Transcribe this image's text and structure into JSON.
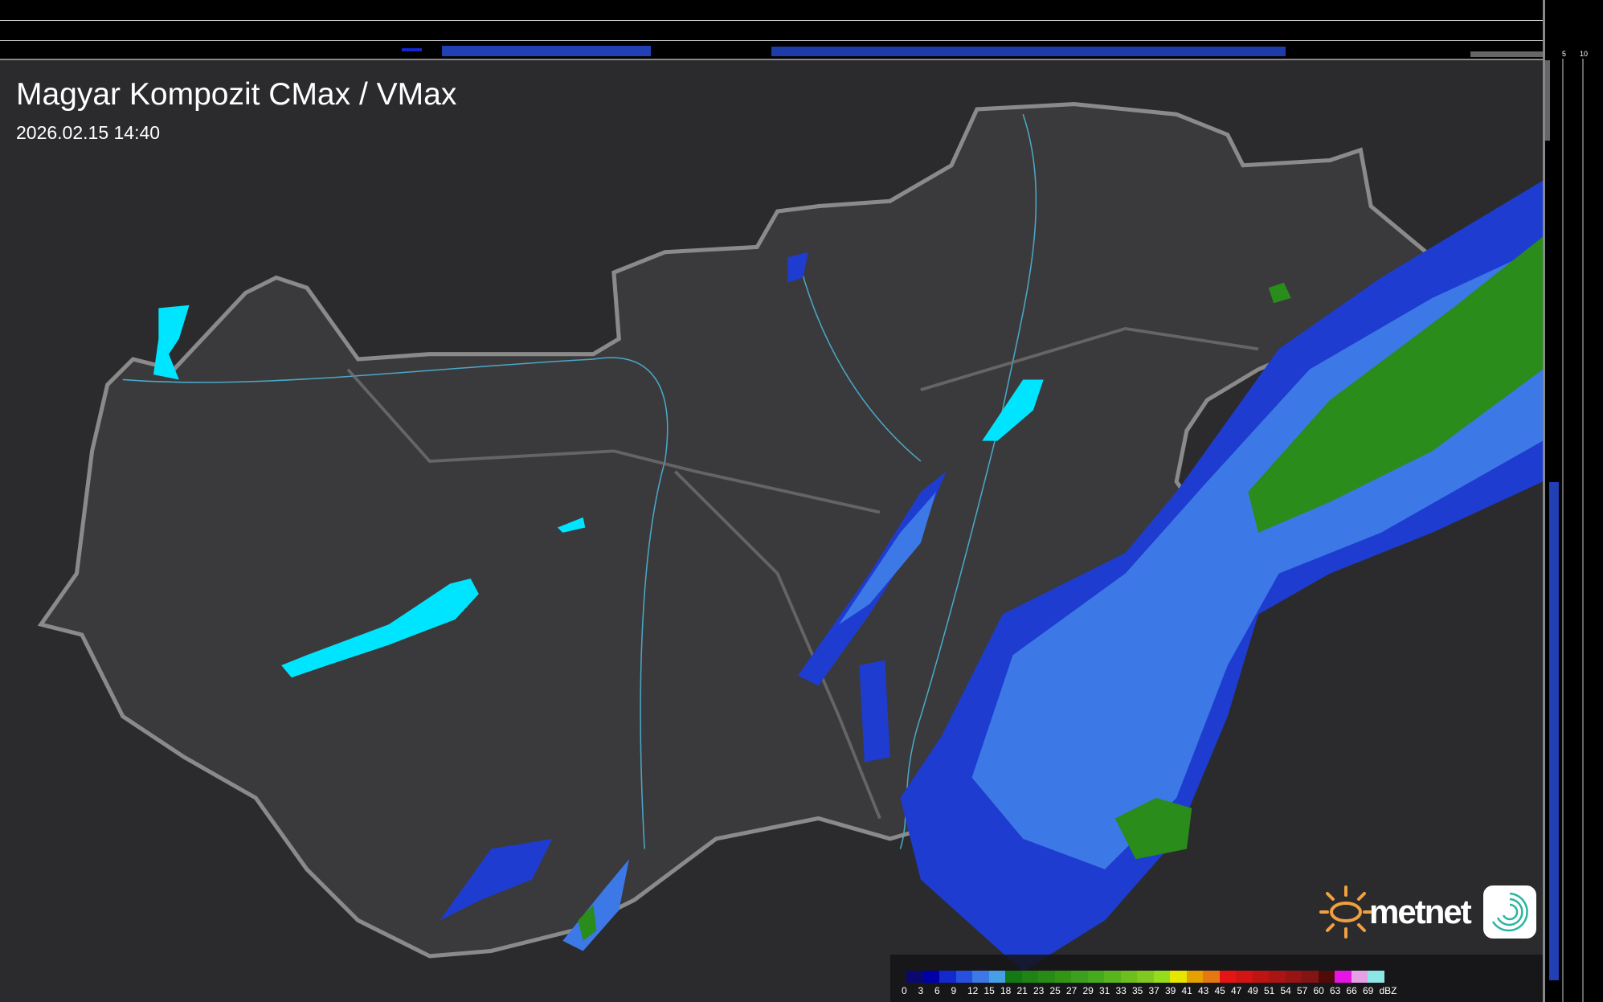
{
  "header": {
    "title": "Magyar Kompozit CMax / VMax",
    "timestamp": "2026.02.15 14:40"
  },
  "profile_axes": {
    "top_ticks": [
      "10",
      "5"
    ],
    "right_ticks": [
      "5",
      "10"
    ]
  },
  "legend": {
    "unit": "dBZ",
    "labels": [
      "0",
      "3",
      "6",
      "9",
      "12",
      "15",
      "18",
      "21",
      "23",
      "25",
      "27",
      "29",
      "31",
      "33",
      "35",
      "37",
      "39",
      "41",
      "43",
      "45",
      "47",
      "49",
      "51",
      "54",
      "57",
      "60",
      "63",
      "66",
      "69"
    ],
    "colors": [
      "#0a0a6e",
      "#0000a8",
      "#1428d0",
      "#2850e0",
      "#3c78e6",
      "#46a0e6",
      "#147814",
      "#1e8214",
      "#288c14",
      "#329614",
      "#3ca01e",
      "#46aa1e",
      "#5ab41e",
      "#6ebe1e",
      "#82c81e",
      "#96dc1e",
      "#e6e600",
      "#e6a000",
      "#e67814",
      "#e61414",
      "#d21414",
      "#be1414",
      "#aa1414",
      "#961414",
      "#821414",
      "#500a0a",
      "#e614e6",
      "#e6a0e6",
      "#8ce6e6"
    ]
  },
  "logo": {
    "text": "metnet"
  },
  "colors": {
    "water": "#00e5ff",
    "background": "#2a2a2c",
    "border": "#888888"
  }
}
